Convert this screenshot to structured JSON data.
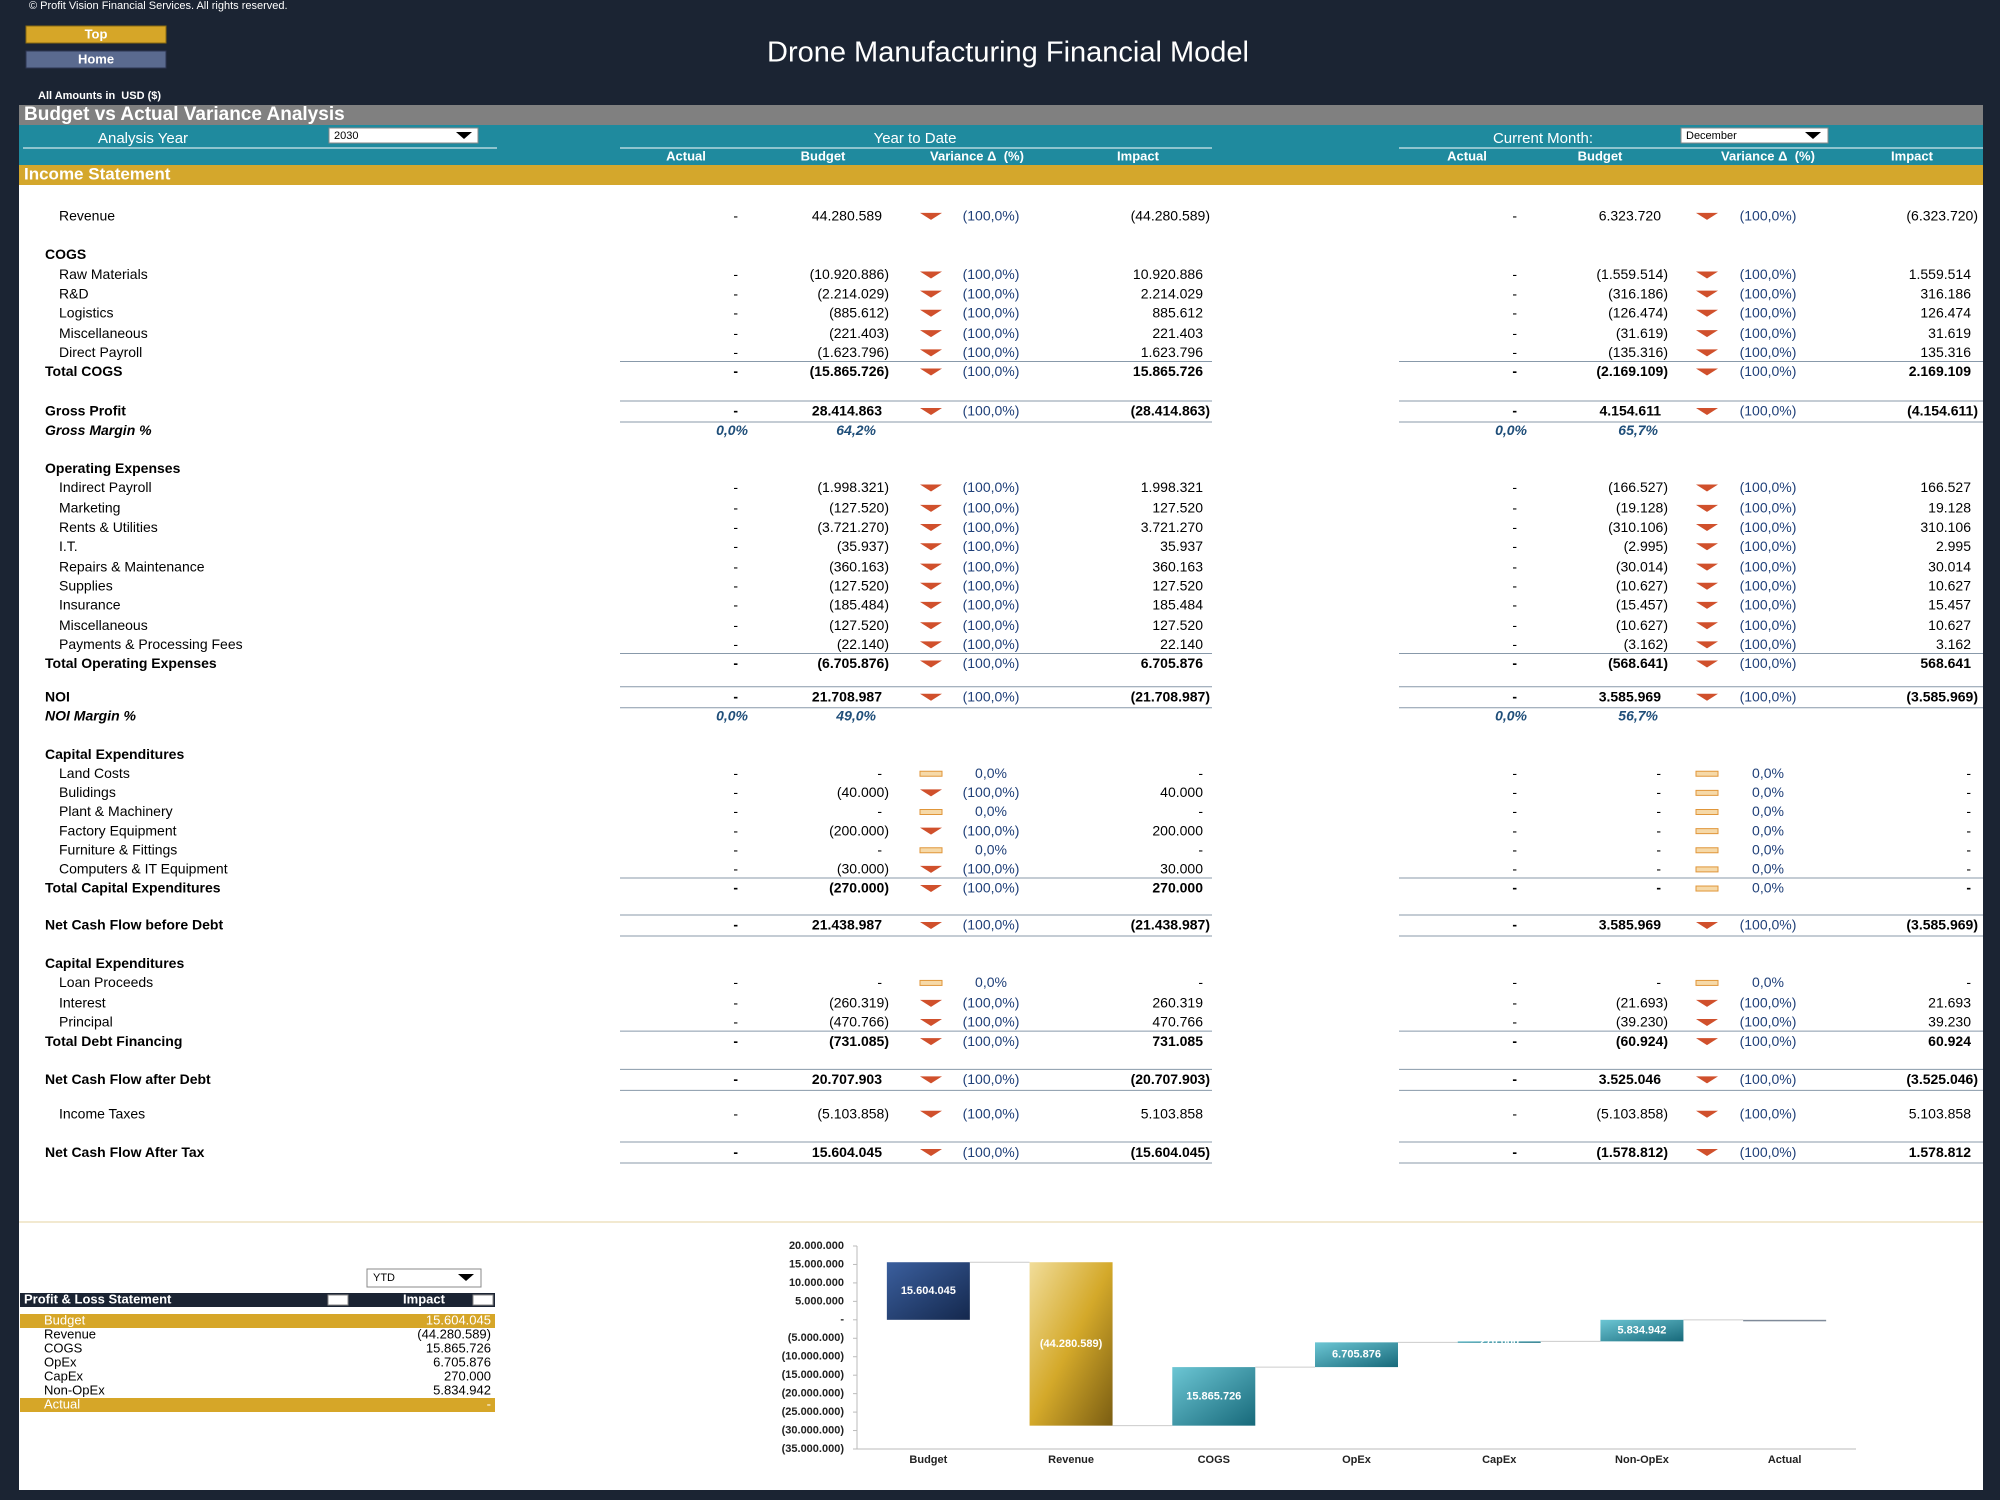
{
  "header": {
    "copyright": "© Profit Vision Financial Services. All rights reserved.",
    "buttons": [
      "Top",
      "Home"
    ],
    "title": "Drone Manufacturing Financial Model",
    "currency_note": "All Amounts in  USD ($)"
  },
  "table": {
    "section_title": "Budget vs Actual Variance Analysis",
    "analysis_year_label": "Analysis Year",
    "analysis_year": "2030",
    "ytd_header": "Year to Date",
    "current_month_label": "Current Month:",
    "current_month": "December",
    "columns": [
      "Actual",
      "Budget",
      "Variance Δ  (%)",
      "Impact"
    ],
    "statement_title": "Income Statement",
    "rows": [
      {
        "label": "Revenue",
        "ytd": [
          "-",
          "44.280.589",
          "(100,0%)",
          "(44.280.589)"
        ],
        "month": [
          "-",
          "6.323.720",
          "(100,0%)",
          "(6.323.720)"
        ]
      },
      {
        "label": "COGS"
      },
      {
        "label": "Raw Materials",
        "ytd": [
          "-",
          "(10.920.886)",
          "(100,0%)",
          "10.920.886"
        ],
        "month": [
          "-",
          "(1.559.514)",
          "(100,0%)",
          "1.559.514"
        ]
      },
      {
        "label": "R&D",
        "ytd": [
          "-",
          "(2.214.029)",
          "(100,0%)",
          "2.214.029"
        ],
        "month": [
          "-",
          "(316.186)",
          "(100,0%)",
          "316.186"
        ]
      },
      {
        "label": "Logistics",
        "ytd": [
          "-",
          "(885.612)",
          "(100,0%)",
          "885.612"
        ],
        "month": [
          "-",
          "(126.474)",
          "(100,0%)",
          "126.474"
        ]
      },
      {
        "label": "Miscellaneous",
        "ytd": [
          "-",
          "(221.403)",
          "(100,0%)",
          "221.403"
        ],
        "month": [
          "-",
          "(31.619)",
          "(100,0%)",
          "31.619"
        ]
      },
      {
        "label": "Direct Payroll",
        "ytd": [
          "-",
          "(1.623.796)",
          "(100,0%)",
          "1.623.796"
        ],
        "month": [
          "-",
          "(135.316)",
          "(100,0%)",
          "135.316"
        ]
      },
      {
        "label": "Total COGS",
        "ytd": [
          "-",
          "(15.865.726)",
          "(100,0%)",
          "15.865.726"
        ],
        "month": [
          "-",
          "(2.169.109)",
          "(100,0%)",
          "2.169.109"
        ]
      },
      {
        "label": "Gross Profit",
        "ytd": [
          "-",
          "28.414.863",
          "(100,0%)",
          "(28.414.863)"
        ],
        "month": [
          "-",
          "4.154.611",
          "(100,0%)",
          "(4.154.611)"
        ]
      },
      {
        "label": "Gross Margin %",
        "ytd": [
          "0,0%",
          "64,2%"
        ],
        "month": [
          "0,0%",
          "65,7%"
        ]
      },
      {
        "label": "Operating Expenses"
      },
      {
        "label": "Indirect Payroll",
        "ytd": [
          "-",
          "(1.998.321)",
          "(100,0%)",
          "1.998.321"
        ],
        "month": [
          "-",
          "(166.527)",
          "(100,0%)",
          "166.527"
        ]
      },
      {
        "label": "Marketing",
        "ytd": [
          "-",
          "(127.520)",
          "(100,0%)",
          "127.520"
        ],
        "month": [
          "-",
          "(19.128)",
          "(100,0%)",
          "19.128"
        ]
      },
      {
        "label": "Rents & Utilities",
        "ytd": [
          "-",
          "(3.721.270)",
          "(100,0%)",
          "3.721.270"
        ],
        "month": [
          "-",
          "(310.106)",
          "(100,0%)",
          "310.106"
        ]
      },
      {
        "label": "I.T.",
        "ytd": [
          "-",
          "(35.937)",
          "(100,0%)",
          "35.937"
        ],
        "month": [
          "-",
          "(2.995)",
          "(100,0%)",
          "2.995"
        ]
      },
      {
        "label": "Repairs & Maintenance",
        "ytd": [
          "-",
          "(360.163)",
          "(100,0%)",
          "360.163"
        ],
        "month": [
          "-",
          "(30.014)",
          "(100,0%)",
          "30.014"
        ]
      },
      {
        "label": "Supplies",
        "ytd": [
          "-",
          "(127.520)",
          "(100,0%)",
          "127.520"
        ],
        "month": [
          "-",
          "(10.627)",
          "(100,0%)",
          "10.627"
        ]
      },
      {
        "label": "Insurance",
        "ytd": [
          "-",
          "(185.484)",
          "(100,0%)",
          "185.484"
        ],
        "month": [
          "-",
          "(15.457)",
          "(100,0%)",
          "15.457"
        ]
      },
      {
        "label": "Miscellaneous",
        "ytd": [
          "-",
          "(127.520)",
          "(100,0%)",
          "127.520"
        ],
        "month": [
          "-",
          "(10.627)",
          "(100,0%)",
          "10.627"
        ]
      },
      {
        "label": "Payments & Processing Fees",
        "ytd": [
          "-",
          "(22.140)",
          "(100,0%)",
          "22.140"
        ],
        "month": [
          "-",
          "(3.162)",
          "(100,0%)",
          "3.162"
        ]
      },
      {
        "label": "Total Operating Expenses",
        "ytd": [
          "-",
          "(6.705.876)",
          "(100,0%)",
          "6.705.876"
        ],
        "month": [
          "-",
          "(568.641)",
          "(100,0%)",
          "568.641"
        ]
      },
      {
        "label": "NOI",
        "ytd": [
          "-",
          "21.708.987",
          "(100,0%)",
          "(21.708.987)"
        ],
        "month": [
          "-",
          "3.585.969",
          "(100,0%)",
          "(3.585.969)"
        ]
      },
      {
        "label": "NOI Margin %",
        "ytd": [
          "0,0%",
          "49,0%"
        ],
        "month": [
          "0,0%",
          "56,7%"
        ]
      },
      {
        "label": "Capital Expenditures"
      },
      {
        "label": "Land Costs",
        "ytd": [
          "-",
          "-",
          "0,0%",
          "-"
        ],
        "month": [
          "-",
          "-",
          "0,0%",
          "-"
        ]
      },
      {
        "label": "Bulidings",
        "ytd": [
          "-",
          "(40.000)",
          "(100,0%)",
          "40.000"
        ],
        "month": [
          "-",
          "-",
          "0,0%",
          "-"
        ]
      },
      {
        "label": "Plant & Machinery",
        "ytd": [
          "-",
          "-",
          "0,0%",
          "-"
        ],
        "month": [
          "-",
          "-",
          "0,0%",
          "-"
        ]
      },
      {
        "label": "Factory Equipment",
        "ytd": [
          "-",
          "(200.000)",
          "(100,0%)",
          "200.000"
        ],
        "month": [
          "-",
          "-",
          "0,0%",
          "-"
        ]
      },
      {
        "label": "Furniture & Fittings",
        "ytd": [
          "-",
          "-",
          "0,0%",
          "-"
        ],
        "month": [
          "-",
          "-",
          "0,0%",
          "-"
        ]
      },
      {
        "label": "Computers & IT Equipment",
        "ytd": [
          "-",
          "(30.000)",
          "(100,0%)",
          "30.000"
        ],
        "month": [
          "-",
          "-",
          "0,0%",
          "-"
        ]
      },
      {
        "label": "Total Capital Expenditures",
        "ytd": [
          "-",
          "(270.000)",
          "(100,0%)",
          "270.000"
        ],
        "month": [
          "-",
          "-",
          "0,0%",
          "-"
        ]
      },
      {
        "label": "Net Cash Flow before Debt",
        "ytd": [
          "-",
          "21.438.987",
          "(100,0%)",
          "(21.438.987)"
        ],
        "month": [
          "-",
          "3.585.969",
          "(100,0%)",
          "(3.585.969)"
        ]
      },
      {
        "label": "Capital Expenditures"
      },
      {
        "label": "Loan Proceeds",
        "ytd": [
          "-",
          "-",
          "0,0%",
          "-"
        ],
        "month": [
          "-",
          "-",
          "0,0%",
          "-"
        ]
      },
      {
        "label": "Interest",
        "ytd": [
          "-",
          "(260.319)",
          "(100,0%)",
          "260.319"
        ],
        "month": [
          "-",
          "(21.693)",
          "(100,0%)",
          "21.693"
        ]
      },
      {
        "label": "Principal",
        "ytd": [
          "-",
          "(470.766)",
          "(100,0%)",
          "470.766"
        ],
        "month": [
          "-",
          "(39.230)",
          "(100,0%)",
          "39.230"
        ]
      },
      {
        "label": "Total Debt Financing",
        "ytd": [
          "-",
          "(731.085)",
          "(100,0%)",
          "731.085"
        ],
        "month": [
          "-",
          "(60.924)",
          "(100,0%)",
          "60.924"
        ]
      },
      {
        "label": "Net Cash Flow after Debt",
        "ytd": [
          "-",
          "20.707.903",
          "(100,0%)",
          "(20.707.903)"
        ],
        "month": [
          "-",
          "3.525.046",
          "(100,0%)",
          "(3.525.046)"
        ]
      },
      {
        "label": "Income Taxes",
        "ytd": [
          "-",
          "(5.103.858)",
          "(100,0%)",
          "5.103.858"
        ],
        "month": [
          "-",
          "(5.103.858)",
          "(100,0%)",
          "5.103.858"
        ]
      },
      {
        "label": "Net Cash Flow After Tax",
        "ytd": [
          "-",
          "15.604.045",
          "(100,0%)",
          "(15.604.045)"
        ],
        "month": [
          "-",
          "(1.578.812)",
          "(100,0%)",
          "1.578.812"
        ]
      }
    ]
  },
  "pl_table": {
    "period": "YTD",
    "columns": [
      "Profit & Loss Statement",
      "Impact"
    ],
    "rows": [
      [
        "Budget",
        "15.604.045"
      ],
      [
        "Revenue",
        "(44.280.589)"
      ],
      [
        "COGS",
        "15.865.726"
      ],
      [
        "OpEx",
        "6.705.876"
      ],
      [
        "CapEx",
        "270.000"
      ],
      [
        "Non-OpEx",
        "5.834.942"
      ],
      [
        "Actual",
        "-"
      ]
    ]
  },
  "chart_data": {
    "type": "waterfall",
    "categories": [
      "Budget",
      "Revenue",
      "COGS",
      "OpEx",
      "CapEx",
      "Non-OpEx",
      "Actual"
    ],
    "values": [
      15604045,
      -44280589,
      15865726,
      6705876,
      270000,
      5834942,
      0
    ],
    "value_labels": [
      "15.604.045",
      "(44.280.589)",
      "15.865.726",
      "6.705.876",
      "270.000",
      "5.834.942",
      null
    ],
    "colors": [
      "#1f3f78",
      "#c9a228",
      "#2a91a3",
      "#2a91a3",
      "#2a91a3",
      "#2a91a3",
      "#7f8a99"
    ],
    "ylim": [
      -35000000,
      20000000
    ],
    "yticks": [
      {
        "value": 20000000,
        "label": "20.000.000"
      },
      {
        "value": 15000000,
        "label": "15.000.000"
      },
      {
        "value": 10000000,
        "label": "10.000.000"
      },
      {
        "value": 5000000,
        "label": "5.000.000"
      },
      {
        "value": 0,
        "label": "-"
      },
      {
        "value": -5000000,
        "label": "(5.000.000)"
      },
      {
        "value": -10000000,
        "label": "(10.000.000)"
      },
      {
        "value": -15000000,
        "label": "(15.000.000)"
      },
      {
        "value": -20000000,
        "label": "(20.000.000)"
      },
      {
        "value": -25000000,
        "label": "(25.000.000)"
      },
      {
        "value": -30000000,
        "label": "(30.000.000)"
      },
      {
        "value": -35000000,
        "label": "(35.000.000)"
      }
    ]
  }
}
